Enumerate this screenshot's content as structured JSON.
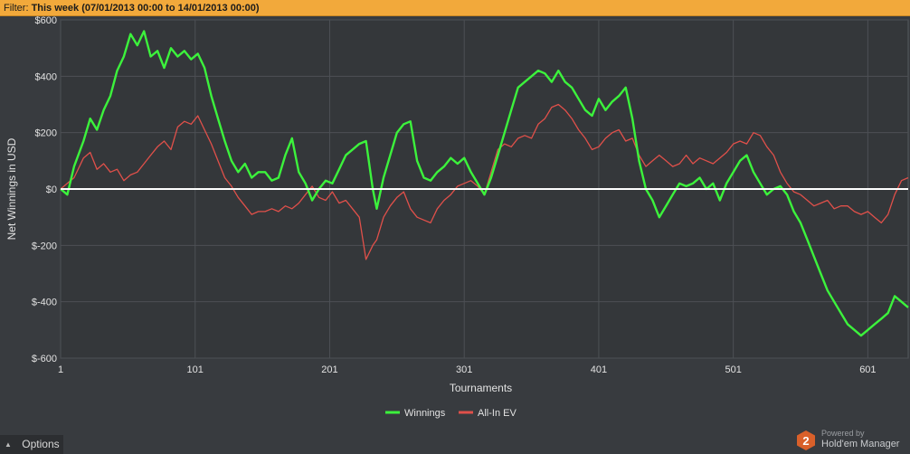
{
  "filter": {
    "label": "Filter:",
    "value": "This week (07/01/2013 00:00 to 14/01/2013 00:00)"
  },
  "options": {
    "label": "Options"
  },
  "branding": {
    "powered_by": "Powered by",
    "product": "Hold'em Manager",
    "badge": "2"
  },
  "colors": {
    "background": "#383b3f",
    "plot_background": "#34373a",
    "grid": "#4d5055",
    "winnings": "#3cf23c",
    "allin_ev": "#e0504a",
    "zero_line": "#ffffff",
    "filter_bar": "#f2a93b"
  },
  "chart_data": {
    "type": "line",
    "xlabel": "Tournaments",
    "ylabel": "Net Winnings in USD",
    "xlim": [
      1,
      631
    ],
    "ylim": [
      -600,
      600
    ],
    "xticks": [
      1,
      101,
      201,
      301,
      401,
      501,
      601
    ],
    "yticks": [
      600,
      400,
      200,
      0,
      -200,
      -400,
      -600
    ],
    "ytick_labels": [
      "$600",
      "$400",
      "$200",
      "$0",
      "$-200",
      "$-400",
      "$-600"
    ],
    "grid": true,
    "legend_position": "bottom-center",
    "series": [
      {
        "name": "Winnings",
        "color": "#3cf23c",
        "x": [
          1,
          6,
          11,
          18,
          23,
          28,
          33,
          38,
          43,
          48,
          53,
          58,
          63,
          68,
          73,
          78,
          83,
          88,
          93,
          98,
          103,
          108,
          113,
          118,
          123,
          128,
          133,
          138,
          143,
          148,
          153,
          158,
          163,
          168,
          173,
          178,
          183,
          188,
          193,
          198,
          203,
          208,
          213,
          218,
          223,
          228,
          233,
          236,
          241,
          246,
          251,
          256,
          261,
          266,
          271,
          276,
          281,
          286,
          291,
          296,
          301,
          306,
          311,
          316,
          321,
          326,
          331,
          336,
          341,
          346,
          351,
          356,
          361,
          366,
          371,
          376,
          381,
          386,
          391,
          396,
          401,
          406,
          411,
          416,
          421,
          426,
          431,
          436,
          441,
          446,
          451,
          456,
          461,
          466,
          471,
          476,
          481,
          486,
          491,
          496,
          501,
          506,
          511,
          516,
          521,
          526,
          531,
          536,
          541,
          546,
          551,
          556,
          561,
          566,
          571,
          576,
          581,
          586,
          591,
          596,
          601,
          606,
          611,
          616,
          621,
          626,
          631
        ],
        "y": [
          0,
          -20,
          80,
          170,
          250,
          210,
          280,
          330,
          420,
          470,
          550,
          510,
          560,
          470,
          490,
          430,
          500,
          470,
          490,
          460,
          480,
          430,
          330,
          250,
          170,
          100,
          60,
          90,
          40,
          60,
          60,
          30,
          40,
          120,
          180,
          60,
          20,
          -40,
          0,
          30,
          20,
          70,
          120,
          140,
          160,
          170,
          0,
          -70,
          40,
          120,
          200,
          230,
          240,
          100,
          40,
          30,
          60,
          80,
          110,
          90,
          110,
          60,
          20,
          -20,
          40,
          120,
          200,
          280,
          360,
          380,
          400,
          420,
          410,
          380,
          420,
          380,
          360,
          320,
          280,
          260,
          320,
          280,
          310,
          330,
          360,
          250,
          100,
          0,
          -40,
          -100,
          -60,
          -20,
          20,
          10,
          20,
          40,
          0,
          20,
          -40,
          20,
          60,
          100,
          120,
          60,
          20,
          -20,
          0,
          10,
          -20,
          -80,
          -120,
          -180,
          -240,
          -300,
          -360,
          -400,
          -440,
          -480,
          -500,
          -520,
          -500,
          -480,
          -460,
          -440,
          -380,
          -400,
          -420
        ]
      },
      {
        "name": "All-In EV",
        "color": "#e0504a",
        "x": [
          1,
          6,
          11,
          18,
          23,
          28,
          33,
          38,
          43,
          48,
          53,
          58,
          63,
          68,
          73,
          78,
          83,
          88,
          93,
          98,
          103,
          108,
          113,
          118,
          123,
          128,
          133,
          138,
          143,
          148,
          153,
          158,
          163,
          168,
          173,
          178,
          183,
          188,
          193,
          198,
          203,
          208,
          213,
          218,
          223,
          228,
          233,
          236,
          241,
          246,
          251,
          256,
          261,
          266,
          271,
          276,
          281,
          286,
          291,
          296,
          301,
          306,
          311,
          316,
          321,
          326,
          331,
          336,
          341,
          346,
          351,
          356,
          361,
          366,
          371,
          376,
          381,
          386,
          391,
          396,
          401,
          406,
          411,
          416,
          421,
          426,
          431,
          436,
          441,
          446,
          451,
          456,
          461,
          466,
          471,
          476,
          481,
          486,
          491,
          496,
          501,
          506,
          511,
          516,
          521,
          526,
          531,
          536,
          541,
          546,
          551,
          556,
          561,
          566,
          571,
          576,
          581,
          586,
          591,
          596,
          601,
          606,
          611,
          616,
          621,
          626,
          631
        ],
        "y": [
          0,
          20,
          40,
          110,
          130,
          70,
          90,
          60,
          70,
          30,
          50,
          60,
          90,
          120,
          150,
          170,
          140,
          220,
          240,
          230,
          260,
          210,
          160,
          100,
          40,
          10,
          -30,
          -60,
          -90,
          -80,
          -80,
          -70,
          -80,
          -60,
          -70,
          -50,
          -20,
          10,
          -30,
          -40,
          -10,
          -50,
          -40,
          -70,
          -100,
          -250,
          -200,
          -180,
          -100,
          -60,
          -30,
          -10,
          -70,
          -100,
          -110,
          -120,
          -70,
          -40,
          -20,
          10,
          20,
          30,
          10,
          -20,
          60,
          140,
          160,
          150,
          180,
          190,
          180,
          230,
          250,
          290,
          300,
          280,
          250,
          210,
          180,
          140,
          150,
          180,
          200,
          210,
          170,
          180,
          120,
          80,
          100,
          120,
          100,
          80,
          90,
          120,
          90,
          110,
          100,
          90,
          110,
          130,
          160,
          170,
          160,
          200,
          190,
          150,
          120,
          60,
          20,
          -10,
          -20,
          -40,
          -60,
          -50,
          -40,
          -70,
          -60,
          -60,
          -80,
          -90,
          -80,
          -100,
          -120,
          -90,
          -20,
          30,
          40
        ]
      }
    ]
  }
}
